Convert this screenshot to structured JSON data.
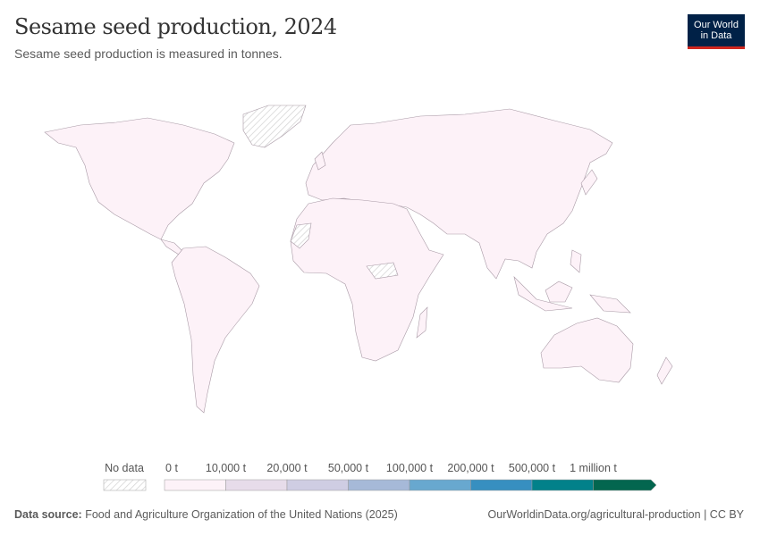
{
  "header": {
    "title": "Sesame seed production, 2024",
    "subtitle": "Sesame seed production is measured in tonnes.",
    "logo_line1": "Our World",
    "logo_line2": "in Data"
  },
  "chart_data": {
    "type": "choropleth-map",
    "title": "Sesame seed production, 2024",
    "unit": "tonnes",
    "legend": {
      "placement": "bottom",
      "no_data_label": "No data",
      "tick_labels": [
        "0 t",
        "10,000 t",
        "20,000 t",
        "50,000 t",
        "100,000 t",
        "200,000 t",
        "500,000 t",
        "1 million t"
      ],
      "bin_colors": [
        "#fdf2f8",
        "#e7dcea",
        "#cfcde3",
        "#a6b9d8",
        "#68a8cf",
        "#378fc0",
        "#02818a",
        "#03664f"
      ],
      "no_data_pattern": "hatched"
    }
  },
  "colors": {
    "land": "#fdf2f8",
    "border": "#a99aa6",
    "no_data": "#d9d9d9"
  },
  "footer": {
    "source_label": "Data source:",
    "source_text": "Food and Agriculture Organization of the United Nations (2025)",
    "link": "OurWorldinData.org/agricultural-production",
    "license": "CC BY"
  }
}
